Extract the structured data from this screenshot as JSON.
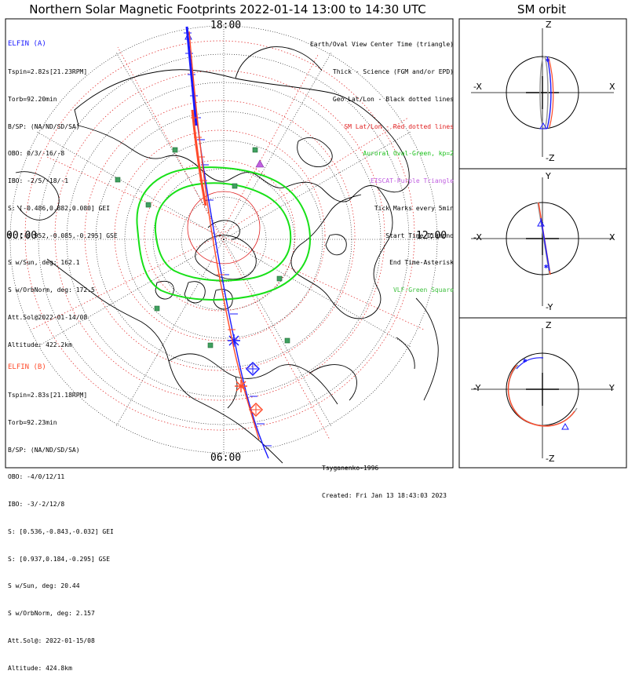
{
  "title": "Northern Solar Magnetic Footprints 2022-01-14 13:00 to 14:30 UTC",
  "orbit_title": "SM orbit",
  "map": {
    "time_labels": {
      "top": "18:00",
      "left": "00:00",
      "right": "12:00",
      "bottom": "06:00"
    },
    "colors": {
      "elfin_a": "#1a1aff",
      "elfin_b": "#ff4a2a",
      "oval": "#18e018",
      "geo": "#000000",
      "sm": "#e02020",
      "eiscat": "#c060e0",
      "vlf": "#40a060"
    }
  },
  "elfin_a": {
    "header": "ELFIN (A)",
    "lines": [
      "Tspin=2.82s[21.23RPM]",
      "Torb=92.20min",
      "B/SP: (NA/ND/SD/SA)",
      "OBO: 0/3/-16/-8",
      "IBO: -2/5/-18/-1",
      "S: [-0.486,0.882,0.080] GEI",
      "S: [-0.952,-0.085,-0.295] GSE",
      "S w/Sun, deg: 162.1",
      "S w/OrbNorm, deg: 172.5",
      "Att.Sol@2022-01-14/08",
      "Altitude: 422.2km"
    ]
  },
  "elfin_b": {
    "header": "ELFIN (B)",
    "lines": [
      "Tspin=2.83s[21.18RPM]",
      "Torb=92.23min",
      "B/SP: (NA/ND/SD/SA)",
      "OBO: -4/0/12/11",
      "IBO: -3/-2/12/8",
      "S: [0.536,-0.843,-0.032] GEI",
      "S: [0.937,0.184,-0.295] GSE",
      "S w/Sun, deg: 20.44",
      "S w/OrbNorm, deg: 2.157",
      "Att.Sol@: 2022-01-15/08",
      "Altitude: 424.8km"
    ]
  },
  "legend": [
    {
      "text": "Earth/Oval View Center Time (triangle)",
      "color": "#000000"
    },
    {
      "text": "Thick - Science (FGM and/or EPD)",
      "color": "#000000"
    },
    {
      "text": "Geo Lat/Lon - Black dotted lines",
      "color": "#000000"
    },
    {
      "text": "SM Lat/Lon - Red dotted lines",
      "color": "#e02020"
    },
    {
      "text": "Auroral Oval-Green, kp=2",
      "color": "#18c018"
    },
    {
      "text": "EISCAT-Purple Triangle",
      "color": "#c060e0"
    },
    {
      "text": "Tick Marks every 5min",
      "color": "#000000"
    },
    {
      "text": "Start Time-Diamond",
      "color": "#000000"
    },
    {
      "text": "End Time-Asterisk",
      "color": "#000000"
    },
    {
      "text": "VLF-Green Square",
      "color": "#40c040"
    }
  ],
  "footer": {
    "model": "Tsyganenko-1996",
    "created": "Created: Fri Jan 13 18:43:03 2023"
  },
  "orbit_panels": [
    {
      "top": "Z",
      "bottom": "-Z",
      "left": "-X",
      "right": "X"
    },
    {
      "top": "Y",
      "bottom": "-Y",
      "left": "-X",
      "right": "X"
    },
    {
      "top": "Z",
      "bottom": "-Z",
      "left": "-Y",
      "right": "Y"
    }
  ]
}
